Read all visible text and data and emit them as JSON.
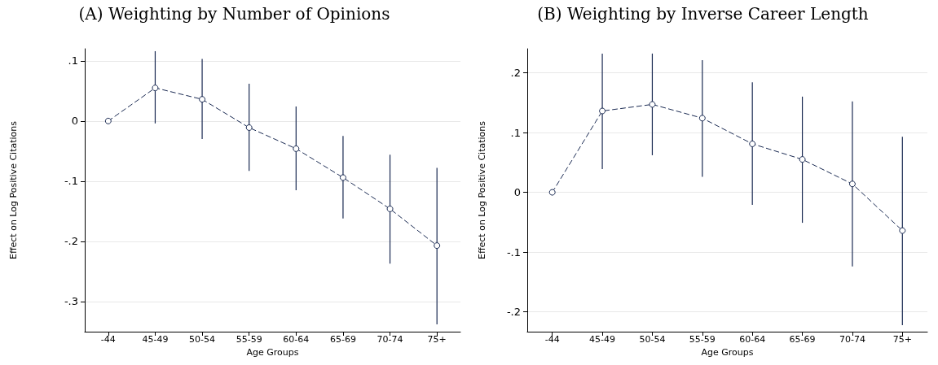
{
  "chart_data": [
    {
      "type": "line",
      "title": "(A) Weighting by Number of Opinions",
      "xlabel": "Age Groups",
      "ylabel": "Effect on Log Positive Citations",
      "categories": [
        "-44",
        "45-49",
        "50-54",
        "55-59",
        "60-64",
        "65-69",
        "70-74",
        "75+"
      ],
      "values": [
        0,
        0.055,
        0.036,
        -0.011,
        -0.046,
        -0.094,
        -0.146,
        -0.207
      ],
      "errors": [
        null,
        [
          -0.004,
          0.116
        ],
        [
          -0.03,
          0.103
        ],
        [
          -0.083,
          0.062
        ],
        [
          -0.115,
          0.024
        ],
        [
          -0.162,
          -0.025
        ],
        [
          -0.237,
          -0.056
        ],
        [
          -0.338,
          -0.078
        ]
      ],
      "color": "#1a2a52",
      "ylim": [
        -0.35,
        0.12
      ],
      "yticks": [
        {
          "value": -0.3,
          "label": "-.3"
        },
        {
          "value": -0.2,
          "label": "-.2"
        },
        {
          "value": -0.1,
          "label": "-.1"
        },
        0,
        {
          "value": 0.1,
          "label": ".1"
        }
      ],
      "grid": "y",
      "marker": "circle",
      "line_style": "dashed"
    },
    {
      "type": "line",
      "title": "(B) Weighting by Inverse Career Length",
      "xlabel": "Age Groups",
      "ylabel": "Effect on Log Positive Citations",
      "categories": [
        "-44",
        "45-49",
        "50-54",
        "55-59",
        "60-64",
        "65-69",
        "70-74",
        "75+"
      ],
      "values": [
        0,
        0.136,
        0.147,
        0.124,
        0.081,
        0.055,
        0.014,
        -0.064
      ],
      "errors": [
        null,
        [
          0.039,
          0.232
        ],
        [
          0.062,
          0.232
        ],
        [
          0.026,
          0.221
        ],
        [
          -0.021,
          0.184
        ],
        [
          -0.051,
          0.16
        ],
        [
          -0.124,
          0.152
        ],
        [
          -0.222,
          0.093
        ]
      ],
      "color": "#1a2a52",
      "ylim": [
        -0.233,
        0.24
      ],
      "yticks": [
        {
          "value": -0.2,
          "label": "-.2"
        },
        {
          "value": -0.1,
          "label": "-.1"
        },
        0,
        {
          "value": 0.1,
          "label": ".1"
        },
        {
          "value": 0.2,
          "label": ".2"
        }
      ],
      "grid": "y",
      "marker": "circle",
      "line_style": "dashed"
    }
  ]
}
